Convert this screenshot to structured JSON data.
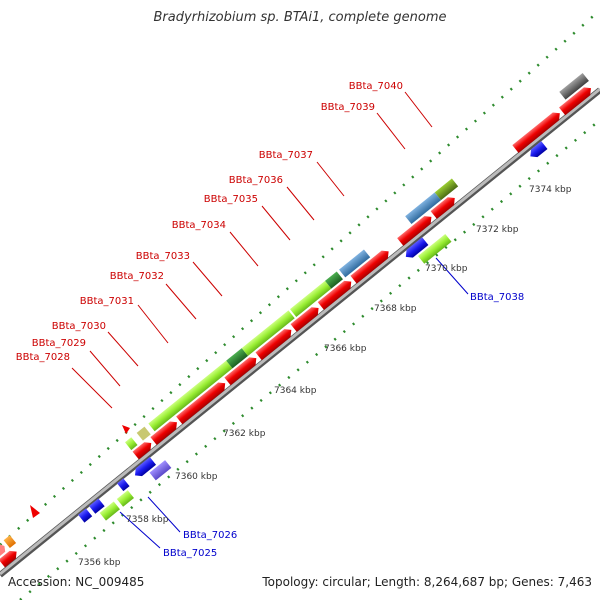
{
  "title": "Bradyrhizobium sp. BTAi1, complete genome",
  "footer": {
    "accession": "Accession: NC_009485",
    "stats": "Topology: circular; Length: 8,264,687 bp; Genes: 7,463"
  },
  "colors": {
    "backbone": "#8c8c8c",
    "tick": "#2e8b2e",
    "forward_label": "#cc0000",
    "reverse_label": "#0000cc",
    "kbp_label": "#333333",
    "cds_red": "#ee0000",
    "cds_green": "#99ee33",
    "cds_blue": "#1a1aee",
    "cds_steel": "#4682b4",
    "cds_olive": "#6b8e23"
  },
  "scale_labels": [
    "7356 kbp",
    "7358 kbp",
    "7360 kbp",
    "7362 kbp",
    "7364 kbp",
    "7366 kbp",
    "7368 kbp",
    "7370 kbp",
    "7372 kbp",
    "7374 kbp"
  ],
  "forward_genes": [
    "BBta_7028",
    "BBta_7029",
    "BBta_7030",
    "BBta_7031",
    "BBta_7032",
    "BBta_7033",
    "BBta_7034",
    "BBta_7035",
    "BBta_7036",
    "BBta_7037",
    "BBta_7039",
    "BBta_7040"
  ],
  "reverse_genes": [
    "BBta_7025",
    "BBta_7026",
    "BBta_7038"
  ]
}
